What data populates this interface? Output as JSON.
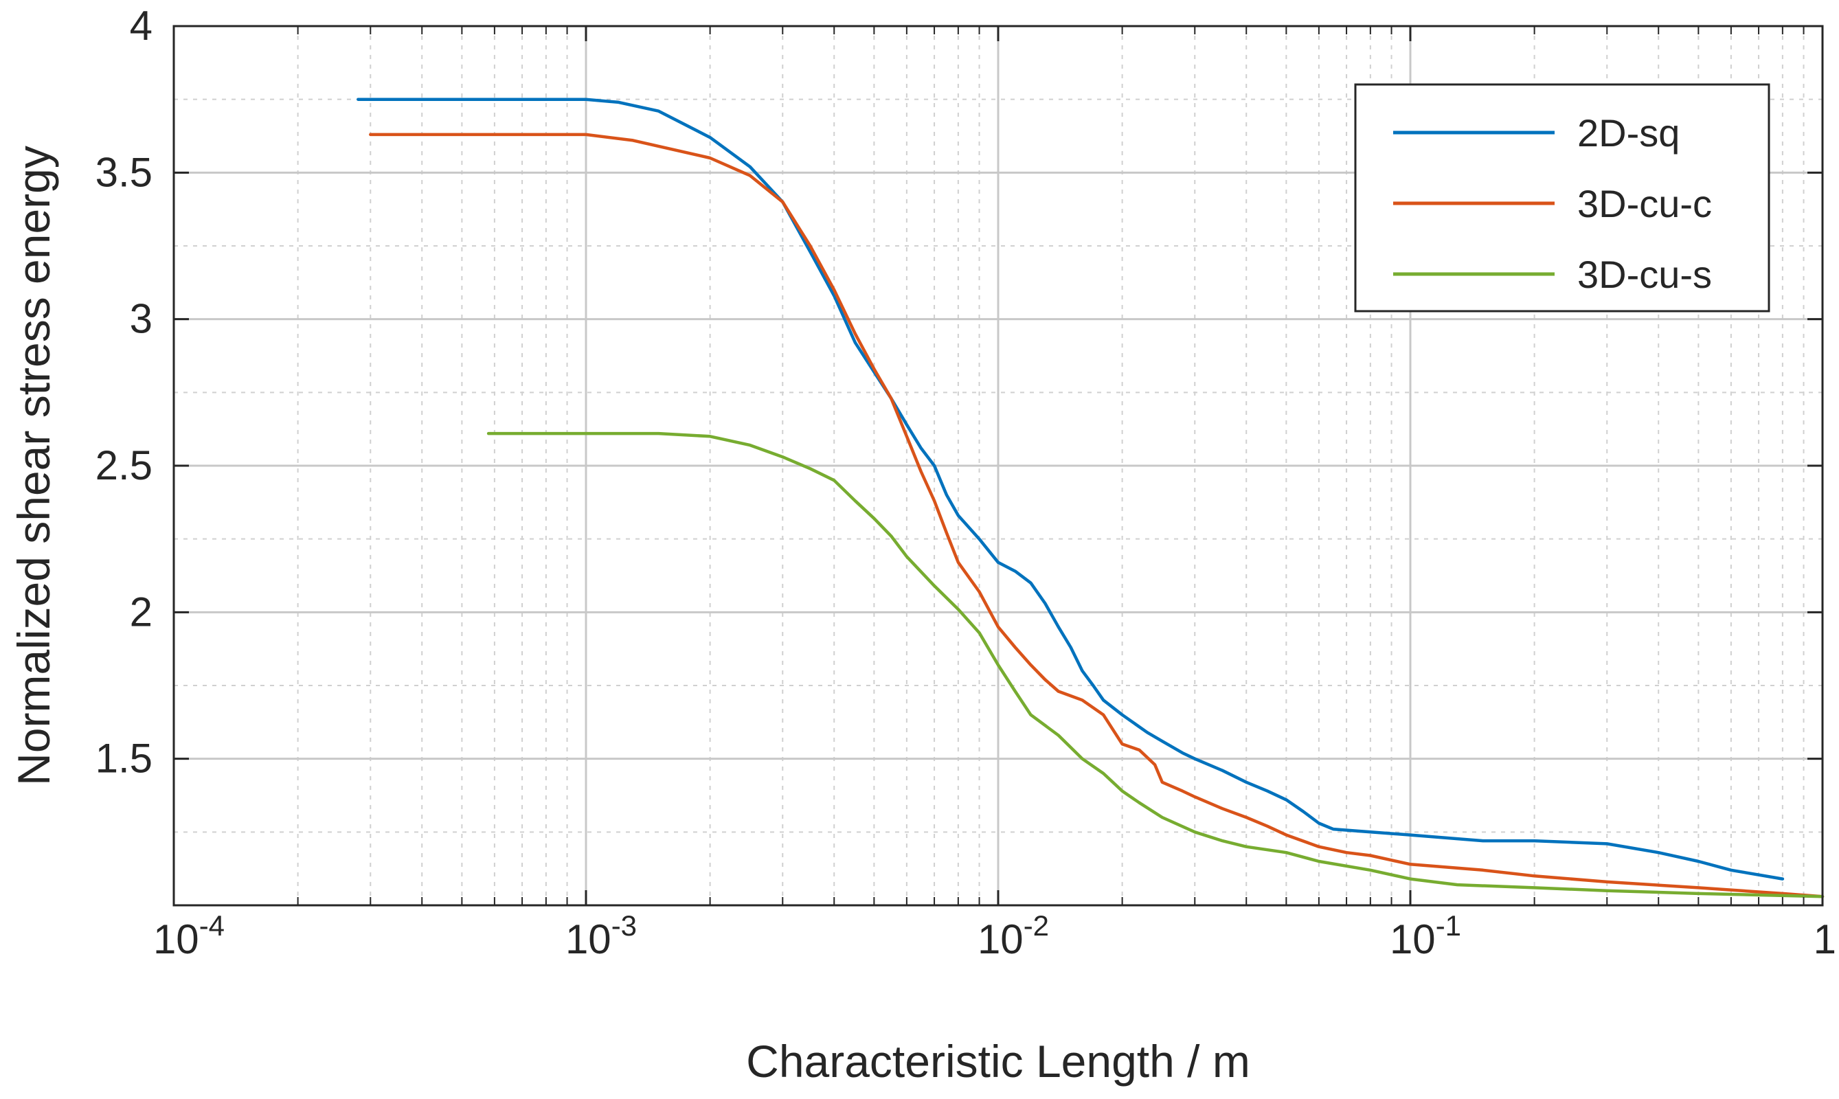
{
  "chart_data": {
    "type": "line",
    "title": "",
    "xlabel": "Characteristic Length / m",
    "ylabel": "Normalized shear stress energy",
    "xscale": "log",
    "xlim": [
      0.0001,
      1
    ],
    "ylim": [
      1.0,
      4.0
    ],
    "grid": true,
    "minor_grid": true,
    "legend_position": "top-right",
    "x_ticks": [
      {
        "value": 0.0001,
        "base": "10",
        "exp": "-4"
      },
      {
        "value": 0.001,
        "base": "10",
        "exp": "-3"
      },
      {
        "value": 0.01,
        "base": "10",
        "exp": "-2"
      },
      {
        "value": 0.1,
        "base": "10",
        "exp": "-1"
      },
      {
        "value": 1,
        "base": "1",
        "exp": ""
      }
    ],
    "y_ticks": [
      {
        "value": 1.5,
        "label": "1.5"
      },
      {
        "value": 2.0,
        "label": "2"
      },
      {
        "value": 2.5,
        "label": "2.5"
      },
      {
        "value": 3.0,
        "label": "3"
      },
      {
        "value": 3.5,
        "label": "3.5"
      },
      {
        "value": 4.0,
        "label": "4"
      }
    ],
    "series": [
      {
        "name": "2D-sq",
        "color": "#0072BD",
        "points": [
          [
            0.00028,
            3.75
          ],
          [
            0.0005,
            3.75
          ],
          [
            0.001,
            3.75
          ],
          [
            0.0012,
            3.74
          ],
          [
            0.0015,
            3.71
          ],
          [
            0.002,
            3.62
          ],
          [
            0.0025,
            3.52
          ],
          [
            0.003,
            3.4
          ],
          [
            0.0035,
            3.23
          ],
          [
            0.004,
            3.08
          ],
          [
            0.0045,
            2.92
          ],
          [
            0.005,
            2.82
          ],
          [
            0.0055,
            2.73
          ],
          [
            0.006,
            2.64
          ],
          [
            0.0065,
            2.56
          ],
          [
            0.007,
            2.5
          ],
          [
            0.0075,
            2.4
          ],
          [
            0.008,
            2.33
          ],
          [
            0.009,
            2.25
          ],
          [
            0.01,
            2.17
          ],
          [
            0.011,
            2.14
          ],
          [
            0.012,
            2.1
          ],
          [
            0.013,
            2.03
          ],
          [
            0.014,
            1.95
          ],
          [
            0.015,
            1.88
          ],
          [
            0.016,
            1.8
          ],
          [
            0.017,
            1.75
          ],
          [
            0.018,
            1.7
          ],
          [
            0.02,
            1.65
          ],
          [
            0.023,
            1.59
          ],
          [
            0.025,
            1.56
          ],
          [
            0.028,
            1.52
          ],
          [
            0.03,
            1.5
          ],
          [
            0.035,
            1.46
          ],
          [
            0.04,
            1.42
          ],
          [
            0.045,
            1.39
          ],
          [
            0.05,
            1.36
          ],
          [
            0.055,
            1.32
          ],
          [
            0.06,
            1.28
          ],
          [
            0.065,
            1.26
          ],
          [
            0.08,
            1.25
          ],
          [
            0.1,
            1.24
          ],
          [
            0.15,
            1.22
          ],
          [
            0.2,
            1.22
          ],
          [
            0.3,
            1.21
          ],
          [
            0.4,
            1.18
          ],
          [
            0.5,
            1.15
          ],
          [
            0.6,
            1.12
          ],
          [
            0.8,
            1.09
          ]
        ]
      },
      {
        "name": "3D-cu-c",
        "color": "#D95319",
        "points": [
          [
            0.0003,
            3.63
          ],
          [
            0.0006,
            3.63
          ],
          [
            0.001,
            3.63
          ],
          [
            0.0013,
            3.61
          ],
          [
            0.0015,
            3.59
          ],
          [
            0.002,
            3.55
          ],
          [
            0.0025,
            3.49
          ],
          [
            0.003,
            3.4
          ],
          [
            0.0035,
            3.25
          ],
          [
            0.004,
            3.1
          ],
          [
            0.0045,
            2.95
          ],
          [
            0.005,
            2.83
          ],
          [
            0.0055,
            2.73
          ],
          [
            0.006,
            2.6
          ],
          [
            0.0065,
            2.48
          ],
          [
            0.007,
            2.38
          ],
          [
            0.0075,
            2.27
          ],
          [
            0.008,
            2.17
          ],
          [
            0.009,
            2.07
          ],
          [
            0.01,
            1.95
          ],
          [
            0.011,
            1.88
          ],
          [
            0.012,
            1.82
          ],
          [
            0.013,
            1.77
          ],
          [
            0.014,
            1.73
          ],
          [
            0.016,
            1.7
          ],
          [
            0.018,
            1.65
          ],
          [
            0.02,
            1.55
          ],
          [
            0.022,
            1.53
          ],
          [
            0.024,
            1.48
          ],
          [
            0.025,
            1.42
          ],
          [
            0.028,
            1.39
          ],
          [
            0.03,
            1.37
          ],
          [
            0.035,
            1.33
          ],
          [
            0.04,
            1.3
          ],
          [
            0.045,
            1.27
          ],
          [
            0.05,
            1.24
          ],
          [
            0.06,
            1.2
          ],
          [
            0.07,
            1.18
          ],
          [
            0.08,
            1.17
          ],
          [
            0.1,
            1.14
          ],
          [
            0.15,
            1.12
          ],
          [
            0.2,
            1.1
          ],
          [
            0.3,
            1.08
          ],
          [
            0.5,
            1.06
          ],
          [
            0.8,
            1.04
          ],
          [
            1.0,
            1.03
          ]
        ]
      },
      {
        "name": "3D-cu-s",
        "color": "#77AC30",
        "points": [
          [
            0.00058,
            2.61
          ],
          [
            0.001,
            2.61
          ],
          [
            0.0015,
            2.61
          ],
          [
            0.002,
            2.6
          ],
          [
            0.0025,
            2.57
          ],
          [
            0.003,
            2.53
          ],
          [
            0.0035,
            2.49
          ],
          [
            0.004,
            2.45
          ],
          [
            0.0045,
            2.38
          ],
          [
            0.005,
            2.32
          ],
          [
            0.0055,
            2.26
          ],
          [
            0.006,
            2.19
          ],
          [
            0.007,
            2.09
          ],
          [
            0.008,
            2.01
          ],
          [
            0.009,
            1.93
          ],
          [
            0.01,
            1.82
          ],
          [
            0.011,
            1.73
          ],
          [
            0.012,
            1.65
          ],
          [
            0.014,
            1.58
          ],
          [
            0.016,
            1.5
          ],
          [
            0.018,
            1.45
          ],
          [
            0.02,
            1.39
          ],
          [
            0.022,
            1.35
          ],
          [
            0.025,
            1.3
          ],
          [
            0.03,
            1.25
          ],
          [
            0.035,
            1.22
          ],
          [
            0.04,
            1.2
          ],
          [
            0.05,
            1.18
          ],
          [
            0.06,
            1.15
          ],
          [
            0.08,
            1.12
          ],
          [
            0.1,
            1.09
          ],
          [
            0.13,
            1.07
          ],
          [
            0.2,
            1.06
          ],
          [
            0.3,
            1.05
          ],
          [
            0.5,
            1.04
          ],
          [
            1.0,
            1.03
          ]
        ]
      }
    ]
  }
}
